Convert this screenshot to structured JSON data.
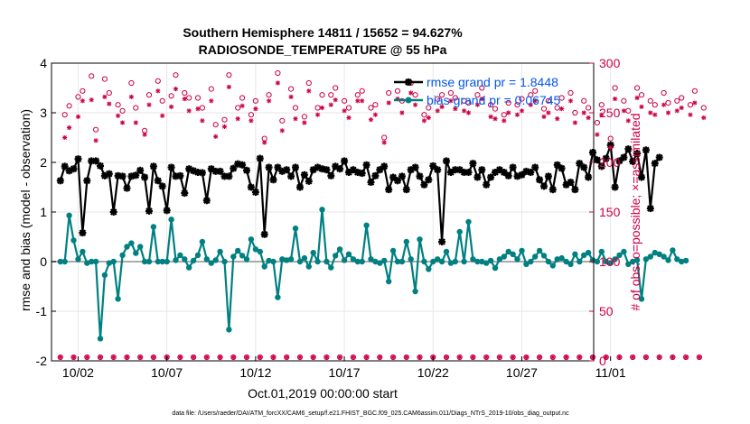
{
  "chart_data": {
    "type": "line",
    "title": [
      "Southern Hemisphere 14811 / 15652 = 94.627%",
      "RADIOSONDE_TEMPERATURE @ 55 hPa"
    ],
    "xlabel": "Oct.01,2019 00:00:00 start",
    "ylabel_left": "rmse and bias (model - observation)",
    "ylabel_right": "# of obs: o=possible; ×=assimilated",
    "footnote": "data file: /Users/raeder/DAI/ATM_forcXX/CAM6_setup/f.e21.FHIST_BGC.f09_025.CAM6assim.011/Diags_NTrS_2019-10/obs_diag_output.nc",
    "x_range_days": [
      0.5,
      31.05
    ],
    "ylim_left": [
      -2,
      4
    ],
    "ylim_right": [
      0,
      300
    ],
    "x_tick_labels": [
      "10/02",
      "10/07",
      "10/12",
      "10/17",
      "10/22",
      "10/27",
      "11/01"
    ],
    "y_ticks_left": [
      "-2",
      "-1",
      "0",
      "1",
      "2",
      "3",
      "4"
    ],
    "y_ticks_right": [
      "0",
      "50",
      "100",
      "150",
      "200",
      "250",
      "300"
    ],
    "grid": true,
    "legend_position": "top-right",
    "colors": {
      "rmse": "#000000",
      "bias": "#008080",
      "obs": "#cc0044",
      "zero": "#aaaaaa",
      "grid": "#e6e6e6"
    },
    "series": [
      {
        "name": "rmse grand pr = 1.8448",
        "axis": "left",
        "values": [
          1.63,
          1.92,
          1.83,
          1.87,
          2.07,
          0.58,
          1.63,
          2.03,
          2.03,
          1.93,
          1.73,
          1.77,
          1.0,
          1.73,
          1.72,
          1.48,
          1.72,
          1.74,
          1.84,
          1.7,
          1.02,
          1.92,
          1.63,
          1.52,
          1.03,
          1.9,
          1.72,
          1.73,
          1.38,
          1.87,
          1.83,
          1.8,
          1.79,
          1.23,
          1.87,
          1.82,
          1.82,
          1.72,
          1.72,
          1.88,
          1.97,
          1.95,
          1.84,
          1.5,
          1.4,
          2.08,
          0.55,
          1.9,
          1.65,
          1.9,
          1.82,
          1.85,
          1.72,
          1.9,
          1.5,
          1.75,
          1.62,
          1.85,
          1.9,
          1.87,
          1.85,
          1.73,
          1.92,
          1.87,
          2.03,
          1.8,
          1.85,
          1.8,
          1.78,
          1.95,
          1.6,
          1.73,
          1.85,
          1.92,
          1.45,
          1.7,
          1.63,
          1.72,
          1.45,
          1.85,
          1.9,
          1.72,
          1.55,
          1.65,
          1.93,
          1.85,
          0.4,
          2.03,
          1.8,
          1.85,
          1.85,
          1.8,
          1.8,
          1.98,
          1.7,
          1.85,
          1.55,
          1.7,
          1.8,
          1.85,
          1.8,
          1.73,
          1.9,
          1.72,
          1.75,
          1.82,
          1.8,
          1.9,
          1.65,
          1.52,
          1.72,
          1.45,
          1.95,
          1.88,
          1.55,
          1.6,
          1.45,
          1.98,
          1.9,
          1.7,
          2.2,
          2.05,
          1.92,
          2.08,
          2.35,
          1.5,
          2.03,
          2.1,
          2.27,
          2.02,
          2.18,
          1.7,
          2.25,
          1.07,
          1.98,
          2.1
        ]
      },
      {
        "name": "bias grand pr = 0.06745",
        "axis": "left",
        "values": [
          0.0,
          0.0,
          0.93,
          0.43,
          0.05,
          0.2,
          -0.03,
          0.0,
          0.0,
          -1.55,
          -0.27,
          -0.03,
          0.0,
          -0.75,
          0.13,
          0.3,
          0.37,
          0.17,
          0.3,
          0.0,
          0.0,
          0.7,
          0.0,
          0.0,
          0.0,
          0.85,
          0.03,
          0.13,
          0.05,
          -0.12,
          0.02,
          0.13,
          0.4,
          0.05,
          -0.03,
          0.03,
          0.2,
          0.0,
          -1.37,
          0.1,
          0.22,
          0.12,
          0.05,
          0.45,
          0.25,
          0.2,
          -0.1,
          0.02,
          0.0,
          -0.72,
          0.05,
          0.03,
          0.05,
          0.67,
          0.0,
          0.07,
          -0.1,
          0.18,
          0.0,
          1.05,
          0.0,
          -0.12,
          0.12,
          0.25,
          0.03,
          0.15,
          0.05,
          0.0,
          0.0,
          0.73,
          0.05,
          0.0,
          -0.03,
          0.02,
          -0.4,
          0.22,
          0.0,
          0.0,
          0.4,
          0.05,
          -0.6,
          0.45,
          0.0,
          -0.15,
          0.0,
          0.05,
          0.0,
          0.2,
          -0.03,
          0.0,
          0.6,
          0.0,
          0.8,
          0.05,
          0.0,
          0.0,
          -0.03,
          0.02,
          -0.13,
          0.05,
          0.1,
          0.2,
          0.15,
          0.05,
          0.22,
          -0.05,
          0.0,
          0.1,
          0.22,
          0.12,
          0.0,
          -0.08,
          0.05,
          0.07,
          0.0,
          -0.05,
          0.15,
          0.0,
          0.13,
          0.18,
          0.03,
          0.0,
          0.2,
          0.0,
          -0.03,
          0.05,
          0.13,
          0.2,
          -0.05,
          0.0,
          0.03,
          -0.75,
          0.05,
          0.1,
          0.18,
          0.15,
          0.1,
          0.03,
          0.23,
          0.05,
          0.0,
          0.02
        ]
      },
      {
        "name": "possible",
        "axis": "right",
        "marker": "circle",
        "values": [
          0,
          248,
          257,
          0,
          266,
          272,
          0,
          287,
          233,
          0,
          284,
          270,
          0,
          258,
          252,
          0,
          280,
          255,
          0,
          232,
          268,
          0,
          282,
          262,
          0,
          267,
          288,
          0,
          270,
          265,
          0,
          265,
          255,
          0,
          274,
          238,
          0,
          243,
          288,
          0,
          255,
          265,
          0,
          248,
          262,
          0,
          224,
          268,
          0,
          290,
          242,
          0,
          274,
          255,
          0,
          246,
          280,
          0,
          255,
          268,
          0,
          268,
          275,
          0,
          262,
          255,
          0,
          268,
          272,
          0,
          255,
          258,
          0,
          225,
          270,
          0,
          272,
          262,
          0,
          280,
          268,
          0,
          248,
          255,
          0,
          264,
          268,
          0,
          270,
          265,
          0,
          262,
          260,
          0,
          268,
          275,
          0,
          258,
          254,
          0,
          248,
          260,
          0,
          258,
          264,
          0,
          268,
          272,
          0,
          254,
          262,
          0,
          255,
          265,
          0,
          270,
          250,
          0,
          262,
          255,
          0,
          240,
          258,
          0,
          224,
          275,
          0,
          262,
          252,
          0,
          275,
          268,
          0,
          262,
          258,
          0,
          270,
          260,
          0,
          262,
          265,
          0,
          258,
          272,
          0,
          255
        ]
      },
      {
        "name": "assimilated",
        "axis": "right",
        "marker": "asterisk",
        "values": [
          0,
          225,
          235,
          0,
          246,
          262,
          0,
          263,
          222,
          0,
          266,
          259,
          0,
          247,
          240,
          0,
          266,
          240,
          0,
          228,
          258,
          0,
          272,
          247,
          0,
          256,
          274,
          0,
          264,
          252,
          0,
          254,
          242,
          0,
          262,
          226,
          0,
          236,
          276,
          0,
          244,
          257,
          0,
          242,
          254,
          0,
          220,
          262,
          0,
          280,
          232,
          0,
          266,
          244,
          0,
          240,
          272,
          0,
          248,
          255,
          0,
          258,
          263,
          0,
          252,
          245,
          0,
          262,
          262,
          0,
          243,
          248,
          0,
          220,
          260,
          0,
          264,
          250,
          0,
          270,
          258,
          0,
          242,
          245,
          0,
          252,
          256,
          0,
          262,
          254,
          0,
          252,
          250,
          0,
          258,
          264,
          0,
          246,
          244,
          0,
          242,
          250,
          0,
          248,
          252,
          0,
          258,
          262,
          0,
          246,
          250,
          0,
          244,
          254,
          0,
          262,
          240,
          0,
          250,
          245,
          0,
          228,
          248,
          0,
          215,
          264,
          0,
          252,
          242,
          0,
          265,
          256,
          0,
          250,
          248,
          0,
          258,
          250,
          0,
          252,
          255,
          0,
          248,
          260,
          0,
          245
        ]
      }
    ]
  }
}
